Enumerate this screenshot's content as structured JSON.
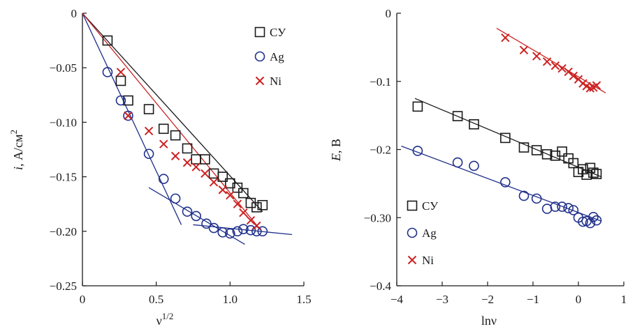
{
  "chart_data": [
    {
      "type": "scatter",
      "xlabel": "ν",
      "xlabel_sup": "1/2",
      "ylabel_italic": "i",
      "ylabel_rest": ", А/см",
      "ylabel_sup": "2",
      "xlim": [
        0,
        1.5
      ],
      "ylim": [
        -0.25,
        0
      ],
      "xticks": [
        0,
        0.5,
        1.0,
        1.5
      ],
      "xtick_labels": [
        "0",
        "0.5",
        "1.0",
        "1.5"
      ],
      "yticks": [
        0,
        -0.05,
        -0.1,
        -0.15,
        -0.2,
        -0.25
      ],
      "ytick_labels": [
        "0",
        "−0.05",
        "−0.10",
        "−0.15",
        "−0.20",
        "−0.25"
      ],
      "grid": false,
      "legend_position": "top-right",
      "series": [
        {
          "name": "СУ",
          "marker": "square",
          "color": "#1a1a1a",
          "x": [
            0.17,
            0.26,
            0.31,
            0.45,
            0.55,
            0.63,
            0.71,
            0.77,
            0.83,
            0.89,
            0.95,
            1.0,
            1.05,
            1.09,
            1.14,
            1.18,
            1.22
          ],
          "y": [
            -0.025,
            -0.062,
            -0.08,
            -0.088,
            -0.106,
            -0.112,
            -0.124,
            -0.134,
            -0.134,
            -0.147,
            -0.15,
            -0.156,
            -0.16,
            -0.165,
            -0.174,
            -0.178,
            -0.176
          ]
        },
        {
          "name": "Ag",
          "marker": "circle",
          "color": "#1f2f8a",
          "x": [
            0.17,
            0.26,
            0.31,
            0.45,
            0.55,
            0.63,
            0.71,
            0.77,
            0.84,
            0.89,
            0.95,
            1.0,
            1.05,
            1.09,
            1.14,
            1.18,
            1.22
          ],
          "y": [
            -0.054,
            -0.08,
            -0.094,
            -0.129,
            -0.152,
            -0.17,
            -0.182,
            -0.186,
            -0.193,
            -0.197,
            -0.201,
            -0.202,
            -0.2,
            -0.198,
            -0.199,
            -0.2,
            -0.2
          ]
        },
        {
          "name": "Ni",
          "marker": "cross",
          "color": "#cc2222",
          "x": [
            0.26,
            0.31,
            0.45,
            0.55,
            0.63,
            0.71,
            0.77,
            0.83,
            0.89,
            0.95,
            1.0,
            1.05,
            1.09,
            1.14,
            1.18
          ],
          "y": [
            -0.054,
            -0.094,
            -0.108,
            -0.12,
            -0.131,
            -0.137,
            -0.141,
            -0.147,
            -0.155,
            -0.162,
            -0.167,
            -0.175,
            -0.183,
            -0.19,
            -0.195
          ]
        }
      ],
      "fit_lines": [
        {
          "color": "#1a1a1a",
          "x": [
            0,
            1.22
          ],
          "y": [
            0,
            -0.182
          ]
        },
        {
          "color": "#1f2f8a",
          "x": [
            0,
            0.67
          ],
          "y": [
            0,
            -0.194
          ]
        },
        {
          "color": "#1f2f8a",
          "x": [
            0.45,
            1.1
          ],
          "y": [
            -0.16,
            -0.212
          ]
        },
        {
          "color": "#1f2f8a",
          "x": [
            0.75,
            1.42
          ],
          "y": [
            -0.194,
            -0.203
          ]
        },
        {
          "color": "#cc2222",
          "x": [
            0,
            1.19
          ],
          "y": [
            0,
            -0.196
          ]
        }
      ]
    },
    {
      "type": "scatter",
      "xlabel": "lnν",
      "ylabel_italic": "E",
      "ylabel_rest": ", В",
      "xlim": [
        -4,
        1
      ],
      "ylim": [
        -0.4,
        0
      ],
      "xticks": [
        -4,
        -3,
        -2,
        -1,
        0,
        1
      ],
      "xtick_labels": [
        "−4",
        "−3",
        "−2",
        "−1",
        "0",
        "1"
      ],
      "yticks": [
        0,
        -0.1,
        -0.2,
        -0.3,
        -0.4
      ],
      "ytick_labels": [
        "0",
        "−0.1",
        "−0.2",
        "−0.30",
        "−0.4"
      ],
      "grid": false,
      "legend_position": "bottom-left",
      "series": [
        {
          "name": "СУ",
          "marker": "square",
          "color": "#1a1a1a",
          "x": [
            -3.54,
            -2.66,
            -2.3,
            -1.61,
            -1.2,
            -0.92,
            -0.69,
            -0.51,
            -0.36,
            -0.22,
            -0.11,
            0.0,
            0.1,
            0.18,
            0.26,
            0.33,
            0.4
          ],
          "y": [
            -0.137,
            -0.151,
            -0.163,
            -0.183,
            -0.197,
            -0.201,
            -0.207,
            -0.209,
            -0.203,
            -0.213,
            -0.22,
            -0.233,
            -0.229,
            -0.237,
            -0.227,
            -0.234,
            -0.236
          ]
        },
        {
          "name": "Ag",
          "marker": "circle",
          "color": "#1f2f8a",
          "x": [
            -3.54,
            -2.66,
            -2.3,
            -1.61,
            -1.2,
            -0.92,
            -0.69,
            -0.51,
            -0.36,
            -0.22,
            -0.11,
            0.0,
            0.1,
            0.18,
            0.26,
            0.33,
            0.4
          ],
          "y": [
            -0.202,
            -0.219,
            -0.224,
            -0.248,
            -0.268,
            -0.272,
            -0.287,
            -0.284,
            -0.284,
            -0.286,
            -0.289,
            -0.3,
            -0.306,
            -0.305,
            -0.308,
            -0.299,
            -0.304
          ]
        },
        {
          "name": "Ni",
          "marker": "cross",
          "color": "#cc2222",
          "x": [
            -1.61,
            -1.2,
            -0.92,
            -0.69,
            -0.51,
            -0.36,
            -0.22,
            -0.11,
            0.0,
            0.1,
            0.18,
            0.26,
            0.33,
            0.4
          ],
          "y": [
            -0.036,
            -0.054,
            -0.063,
            -0.071,
            -0.077,
            -0.081,
            -0.086,
            -0.092,
            -0.097,
            -0.103,
            -0.107,
            -0.11,
            -0.109,
            -0.106
          ]
        }
      ],
      "fit_lines": [
        {
          "color": "#1a1a1a",
          "x": [
            -3.6,
            0.5
          ],
          "y": [
            -0.125,
            -0.24
          ]
        },
        {
          "color": "#1f2f8a",
          "x": [
            -3.9,
            0.5
          ],
          "y": [
            -0.195,
            -0.305
          ]
        },
        {
          "color": "#cc2222",
          "x": [
            -1.8,
            0.6
          ],
          "y": [
            -0.022,
            -0.117
          ]
        }
      ]
    }
  ]
}
